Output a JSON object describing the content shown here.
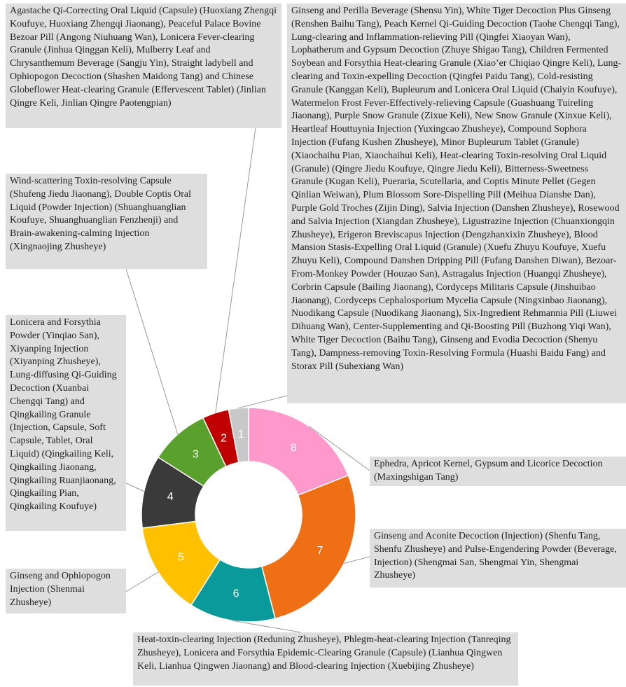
{
  "chart_data": {
    "type": "pie",
    "donut": true,
    "categories": [
      "1",
      "2",
      "3",
      "4",
      "5",
      "6",
      "7",
      "8"
    ],
    "values": [
      3,
      4,
      9,
      11,
      14,
      13,
      27,
      19
    ],
    "colors": [
      "#c8c8c8",
      "#c00000",
      "#5aa02c",
      "#3a3a3a",
      "#ffc000",
      "#0a9a9a",
      "#ef7014",
      "#ff99cc"
    ],
    "callouts": [
      "Ginseng and Perilla Beverage (Shensu Yin), White Tiger Decoction Plus Ginseng (Renshen Baihu Tang), Peach Kernel Qi-Guiding Decoction (Taohe Chengqi Tang), Lung-clearing and Inflammation-relieving Pill (Qingfei Xiaoyan Wan), Lophatherum and Gypsum Decoction (Zhuye Shigao Tang), Children Fermented Soybean and Forsythia Heat-clearing Granule (Xiao’er Chiqiao Qingre Keli), Lung-clearing and Toxin-expelling Decoction (Qingfei Paidu Tang), Cold-resisting Granule (Kanggan Keli), Bupleurum and Lonicera Oral Liquid (Chaiyin Koufuye), Watermelon Frost Fever-Effectively-relieving Capsule (Guashuang Tuireling Jiaonang), Purple Snow Granule (Zixue Keli),  New Snow Granule (Xinxue Keli), Heartleaf Houttuynia Injection (Yuxingcao Zhusheye), Compound Sophora Injection (Fufang Kushen Zhusheye), Minor Bupleurum Tablet (Granule) (Xiaochaihu Pian, Xiaochaihui Keli), Heat-clearing Toxin-resolving Oral Liquid (Granule) (Qingre Jiedu Koufuye, Qingre Jiedu Keli), Bitterness-Sweetness Granule (Kugan Keli), Pueraria, Scutellaria, and Coptis Minute Pellet (Gegen Qinlian Weiwan), Plum Blossom Sore-Dispelling Pill (Meihua Dianshe Dan), Purple Gold Troches (Zijin Ding), Salvia Injection (Danshen Zhusheye), Rosewood and Salvia Injection (Xiangdan Zhusheye), Ligustrazine Injection (Chuanxiongqin Zhusheye), Erigeron Breviscapus Injection (Dengzhanxixin Zhusheye), Blood Mansion Stasis-Expelling Oral Liquid (Granule) (Xuefu Zhuyu Koufuye, Xuefu Zhuyu Keli), Compound Danshen Dripping Pill (Fufang Danshen Diwan), Bezoar-From-Monkey Powder (Houzao San), Astragalus Injection (Huangqi Zhusheye), Corbrin Capsule (Bailing Jiaonang), Cordyceps Militaris Capsule (Jinshuibao Jiaonang), Cordyceps Cephalosporium Mycelia Capsule (Ningxinbao Jiaonang), Nuodikang Capsule (Nuodikang Jiaonang), Six-Ingredient Rehmannia Pill (Liuwei Dihuang Wan), Center-Supplementing and Qi-Boosting Pill (Buzhong Yiqi Wan), White Tiger Decoction (Baihu Tang), Ginseng and Evodia Decoction (Shenyu Tang), Dampness-removing Toxin-Resolving Formula (Huashi Baidu Fang) and Storax Pill (Suhexiang Wan)",
      "Agastache Qi-Correcting Oral Liquid (Capsule) (Huoxiang Zhengqi Koufuye, Huoxiang Zhengqi Jiaonang), Peaceful Palace Bovine Bezoar Pill (Angong Niuhuang Wan), Lonicera Fever-clearing Granule (Jinhua Qinggan Keli), Mulberry Leaf and Chrysanthemum Beverage (Sangju Yin), Straight ladybell and Ophiopogon Decoction (Shashen Maidong Tang) and Chinese Globeflower Heat-clearing Granule (Effervescent Tablet) (Jinlian Qingre Keli, Jinlian Qingre Paotengpian)",
      "Wind-scattering Toxin-resolving Capsule (Shufeng Jiedu Jiaonang), Double Coptis Oral Liquid (Powder Injection) (Shuanghuanglian Koufuye, Shuanghuanglian Fenzhenji) and Brain-awakening-calming Injection (Xingnaojing Zhusheye)",
      "Lonicera and Forsythia Powder (Yinqiao San), Xiyanping Injection (Xiyanping Zhusheye), Lung-diffusing Qi-Guiding Decoction (Xuanbai Chengqi Tang) and Qingkailing Granule (Injection, Capsule, Soft Capsule, Tablet, Oral Liquid) (Qingkailing Keli, Qingkailing Jiaonang, Qingkailing Ruanjiaonang, Qingkailing Pian, Qingkailing Koufuye)",
      "Ginseng and Ophiopogon Injection (Shenmai Zhusheye)",
      "Heat-toxin-clearing Injection (Reduning Zhusheye), Phlegm-heat-clearing Injection (Tanreqing Zhusheye), Lonicera and Forsythia Epidemic-Clearing Granule (Capsule) (Lianhua Qingwen Keli, Lianhua Qingwen Jiaonang) and Blood-clearing Injection (Xuebijing Zhusheye)",
      "Ginseng and Aconite Decoction (Injection) (Shenfu Tang, Shenfu Zhusheye) and Pulse-Engendering Powder (Beverage, Injection) (Shengmai San, Shengmai Yin, Shengmai Zhusheye)",
      "Ephedra, Apricot Kernel, Gypsum and Licorice Decoction (Maxingshigan Tang)"
    ]
  }
}
